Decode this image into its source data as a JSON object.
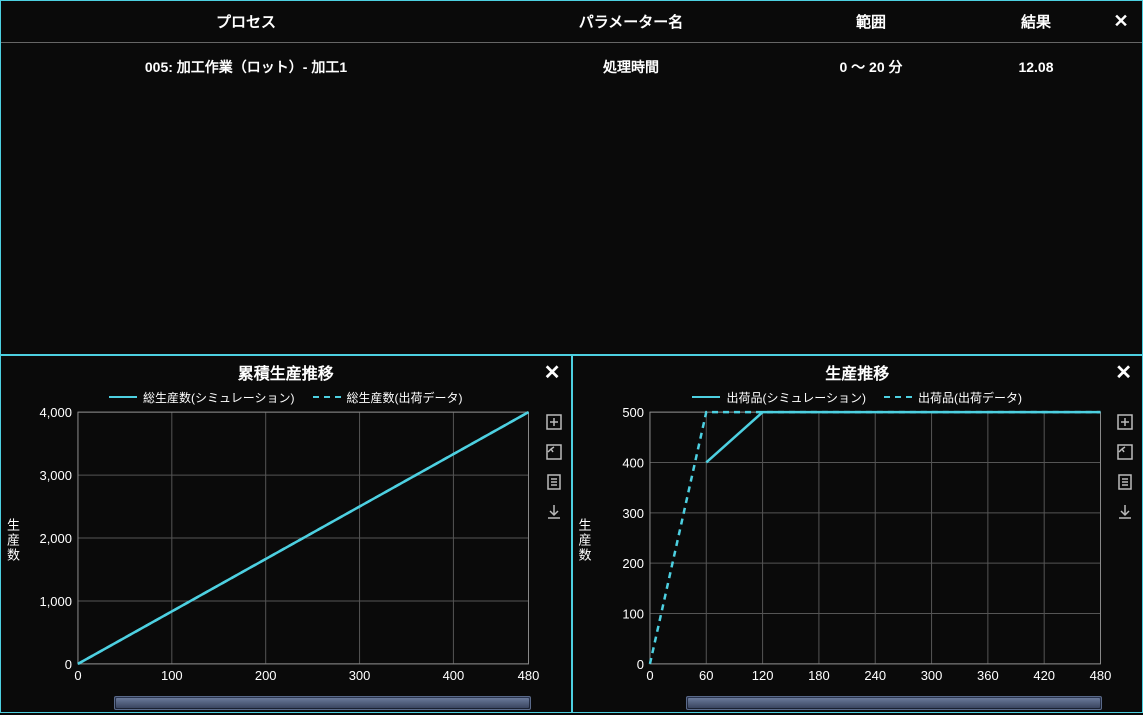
{
  "table": {
    "headers": {
      "process": "プロセス",
      "param": "パラメーター名",
      "range": "範囲",
      "result": "結果"
    },
    "row": {
      "process": "005: 加工作業（ロット）- 加工1",
      "param": "処理時間",
      "range": "0 ～ 20 分",
      "result": "12.08"
    }
  },
  "chart1": {
    "title": "累積生産推移",
    "legend": {
      "solid": "総生産数(シミュレーション)",
      "dash": "総生産数(出荷データ)"
    },
    "ylabel": "生産数",
    "xlim": [
      0,
      480
    ],
    "xticks": [
      0,
      100,
      200,
      300,
      400,
      480
    ],
    "ylim": [
      0,
      4000
    ],
    "yticks": [
      0,
      1000,
      2000,
      3000,
      4000
    ],
    "ytick_labels": [
      "0",
      "1,000",
      "2,000",
      "3,000",
      "4,000"
    ],
    "series_solid": [
      [
        0,
        0
      ],
      [
        480,
        4000
      ]
    ],
    "series_dash": [
      [
        0,
        0
      ],
      [
        480,
        4000
      ]
    ],
    "line_color": "#4dd0e1",
    "grid_color": "#555555",
    "background_color": "#0a0a0a"
  },
  "chart2": {
    "title": "生産推移",
    "legend": {
      "solid": "出荷品(シミュレーション)",
      "dash": "出荷品(出荷データ)"
    },
    "ylabel": "生産数",
    "xlim": [
      0,
      480
    ],
    "xticks": [
      0,
      60,
      120,
      180,
      240,
      300,
      360,
      420,
      480
    ],
    "ylim": [
      0,
      500
    ],
    "yticks": [
      0,
      100,
      200,
      300,
      400,
      500
    ],
    "ytick_labels": [
      "0",
      "100",
      "200",
      "300",
      "400",
      "500"
    ],
    "series_solid": [
      [
        60,
        400
      ],
      [
        120,
        500
      ],
      [
        480,
        500
      ]
    ],
    "series_dash": [
      [
        0,
        0
      ],
      [
        60,
        500
      ],
      [
        480,
        500
      ]
    ],
    "line_color": "#4dd0e1",
    "grid_color": "#555555",
    "background_color": "#0a0a0a"
  }
}
